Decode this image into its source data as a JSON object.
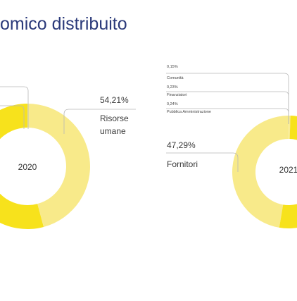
{
  "title": "omico distribuito",
  "colors": {
    "title": "#2b3a7a",
    "segment_dark": "#f7e21c",
    "segment_light": "#f8ea8a",
    "leader_line": "#b8b8b8",
    "label_text": "#3a3a3a"
  },
  "chart_data": [
    {
      "type": "pie",
      "variant": "donut",
      "center_label": "2020",
      "slices": [
        {
          "label": "Risorse umane",
          "value": 54.21,
          "color": "#f7e21c"
        },
        {
          "label": "",
          "value": 45.79,
          "color": "#f8ea8a"
        }
      ],
      "annotations": [
        {
          "value_text": "54,21%",
          "label_lines": [
            "Risorse",
            "umane"
          ]
        }
      ]
    },
    {
      "type": "pie",
      "variant": "donut",
      "center_label": "2021",
      "slices": [
        {
          "label": "Fornitori",
          "value": 47.29,
          "color": "#f8ea8a"
        },
        {
          "label": "Comunità",
          "value": 0.15,
          "color": "#f8ea8a"
        },
        {
          "label": "Finanziatori",
          "value": 0.23,
          "color": "#f8ea8a"
        },
        {
          "label": "Pubblica Amministrazione",
          "value": 0.24,
          "color": "#f8ea8a"
        },
        {
          "label": "",
          "value": 52.09,
          "color": "#f7e21c"
        }
      ],
      "annotations": [
        {
          "value_text": "0,15%",
          "label": "Comunità"
        },
        {
          "value_text": "0,23%",
          "label": "Finanziatori"
        },
        {
          "value_text": "0,24%",
          "label": "Pubblica Amministrazione"
        },
        {
          "value_text": "47,29%",
          "label": "Fornitori"
        }
      ]
    }
  ]
}
